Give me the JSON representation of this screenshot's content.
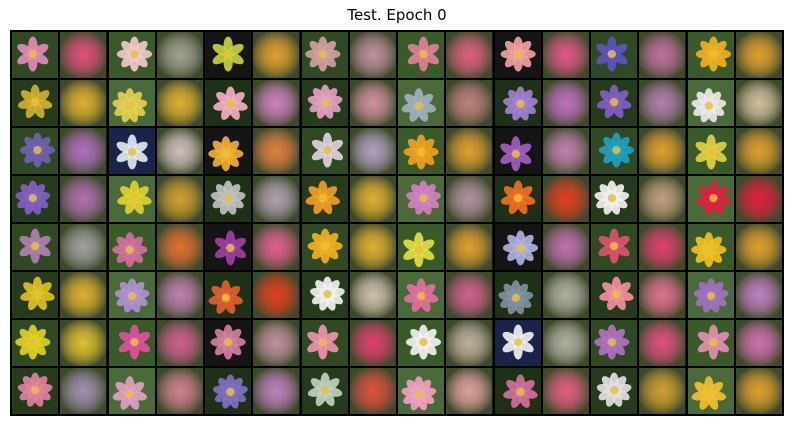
{
  "title": "Test. Epoch 0",
  "grid": {
    "rows": 8,
    "cols": 16,
    "colors": [
      [
        "#e48ab8",
        "#e0507e",
        "#f0c8cc",
        "#a0a090",
        "#c8d040",
        "#e0a030",
        "#d0a0a0",
        "#c090a0",
        "#e08098",
        "#e06080",
        "#f0a0a0",
        "#e05888",
        "#6050c0",
        "#c070a0",
        "#f0b020",
        "#e0a030"
      ],
      [
        "#d0b030",
        "#e0b030",
        "#e0d050",
        "#e0b030",
        "#f0b0c0",
        "#d080c0",
        "#e0a0c0",
        "#d090a0",
        "#a0b0c0",
        "#c08080",
        "#a080d0",
        "#c070c0",
        "#8060c0",
        "#b080b0",
        "#e8e8e8",
        "#d0c0a0"
      ],
      [
        "#7060b0",
        "#b070c0",
        "#e0e8f0",
        "#d0c0c0",
        "#f0b030",
        "#e08040",
        "#e0d0e0",
        "#b0a0c0",
        "#f0a020",
        "#e0a030",
        "#a060c0",
        "#c080b0",
        "#20a0c0",
        "#e0a030",
        "#e0d040",
        "#e0a030"
      ],
      [
        "#8060c0",
        "#b070b0",
        "#e0d030",
        "#d0a030",
        "#c0c0c0",
        "#b0a0b0",
        "#f0a020",
        "#e0b030",
        "#d080c0",
        "#b090a0",
        "#f07020",
        "#e04020",
        "#f0f0f0",
        "#c0a080",
        "#e02040",
        "#e02040"
      ],
      [
        "#b080b0",
        "#a0a0a0",
        "#d070a0",
        "#e07030",
        "#a040a0",
        "#e06090",
        "#f0b020",
        "#e0b030",
        "#e0e040",
        "#e0a030",
        "#b0b0e0",
        "#c070b0",
        "#e05070",
        "#e04070",
        "#f0c020",
        "#e0a030"
      ],
      [
        "#e0c020",
        "#e0b030",
        "#b090d0",
        "#c080b0",
        "#e06030",
        "#e04020",
        "#f0f0f0",
        "#d0c0b0",
        "#e070a0",
        "#d06090",
        "#8090a0",
        "#b0b0a0",
        "#f090a0",
        "#e07090",
        "#a070c0",
        "#c080c0"
      ],
      [
        "#e0d020",
        "#e0c030",
        "#e050a0",
        "#d06090",
        "#d080a0",
        "#c090a0",
        "#f090b0",
        "#e04070",
        "#f0f0f0",
        "#c0b0a0",
        "#f0f0f0",
        "#b0b0a0",
        "#b070c0",
        "#e05080",
        "#e090b0",
        "#d070b0"
      ],
      [
        "#e080a0",
        "#a090b0",
        "#e0a0c0",
        "#d08090",
        "#8070c0",
        "#c080c0",
        "#c0d0c0",
        "#e05040",
        "#f0a0c0",
        "#e0a0a0",
        "#d070a0",
        "#e06080",
        "#e0e0e0",
        "#d0a030",
        "#f0c030",
        "#e0a030"
      ]
    ]
  }
}
